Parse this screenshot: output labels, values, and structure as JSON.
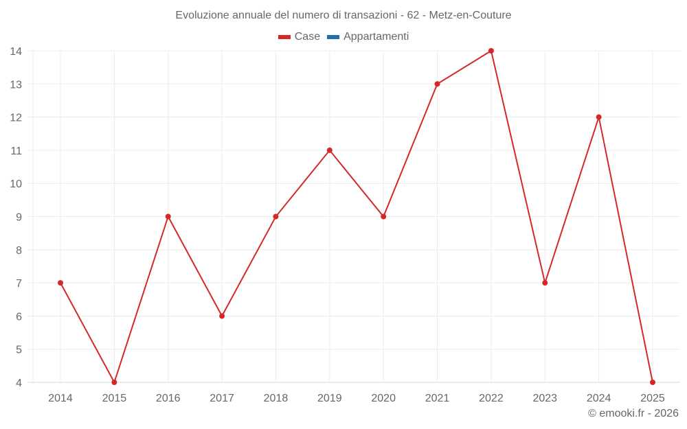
{
  "chart_data": {
    "type": "line",
    "title": "Evoluzione annuale del numero di transazioni - 62 - Metz-en-Couture",
    "xlabel": "",
    "ylabel": "",
    "categories": [
      "2014",
      "2015",
      "2016",
      "2017",
      "2018",
      "2019",
      "2020",
      "2021",
      "2022",
      "2023",
      "2024",
      "2025"
    ],
    "series": [
      {
        "name": "Case",
        "color": "#d62728",
        "values": [
          7,
          4,
          9,
          6,
          9,
          11,
          9,
          13,
          14,
          7,
          12,
          4
        ]
      },
      {
        "name": "Appartamenti",
        "color": "#1f6fa8",
        "values": []
      }
    ],
    "ylim": [
      4,
      14
    ],
    "yticks": [
      4,
      5,
      6,
      7,
      8,
      9,
      10,
      11,
      12,
      13,
      14
    ],
    "grid": true,
    "legend_position": "top"
  },
  "footer": "© emooki.fr - 2026"
}
